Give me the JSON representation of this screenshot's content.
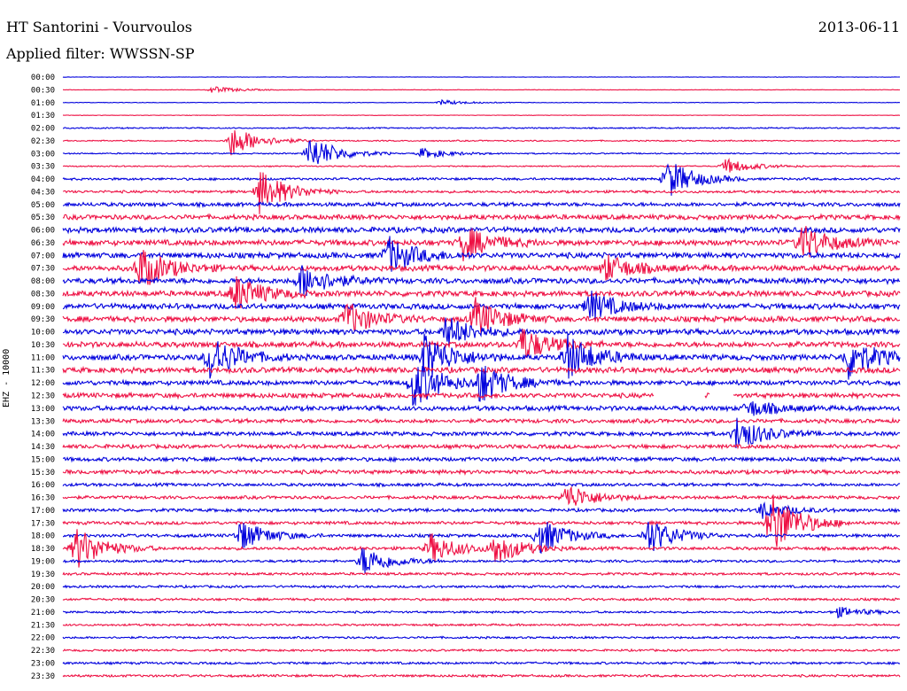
{
  "header": {
    "station": "HT Santorini - Vourvoulos",
    "date": "2013-06-11",
    "filter": "Applied filter: WWSSN-SP"
  },
  "colors": {
    "blue": "#0000dd",
    "red": "#ee1144",
    "background": "#ffffff"
  },
  "chart_data": {
    "type": "line",
    "ylabel": "EHZ - 10000",
    "rows": [
      "00:00",
      "00:30",
      "01:00",
      "01:30",
      "02:00",
      "02:30",
      "03:00",
      "03:30",
      "04:00",
      "04:30",
      "05:00",
      "05:30",
      "06:00",
      "06:30",
      "07:00",
      "07:30",
      "08:00",
      "08:30",
      "09:00",
      "09:30",
      "10:00",
      "10:30",
      "11:00",
      "11:30",
      "12:00",
      "12:30",
      "13:00",
      "13:30",
      "14:00",
      "14:30",
      "15:00",
      "15:30",
      "16:00",
      "16:30",
      "17:00",
      "17:30",
      "18:00",
      "18:30",
      "19:00",
      "19:30",
      "20:00",
      "20:30",
      "21:00",
      "21:30",
      "22:00",
      "22:30",
      "23:00",
      "23:30"
    ],
    "row_colors": [
      "blue",
      "red",
      "blue",
      "red",
      "blue",
      "red",
      "blue",
      "red",
      "blue",
      "red",
      "blue",
      "red",
      "blue",
      "red",
      "blue",
      "red",
      "blue",
      "red",
      "blue",
      "red",
      "blue",
      "red",
      "blue",
      "red",
      "blue",
      "red",
      "blue",
      "red",
      "blue",
      "red",
      "blue",
      "red",
      "blue",
      "red",
      "blue",
      "red",
      "blue",
      "red",
      "blue",
      "red",
      "blue",
      "red",
      "blue",
      "red",
      "blue",
      "red",
      "blue",
      "red"
    ],
    "x_unit": "minutes after row start",
    "xlim": [
      0,
      30
    ],
    "noise_level": [
      0.3,
      0.3,
      0.3,
      0.3,
      0.8,
      0.8,
      0.8,
      0.8,
      1.5,
      1.6,
      2.5,
      3,
      3.5,
      3.5,
      3.5,
      3.5,
      3.5,
      3.5,
      3.5,
      3.5,
      3.5,
      3.5,
      3.5,
      3.5,
      3,
      3,
      3,
      2.5,
      2.5,
      2.5,
      2.5,
      2.5,
      2,
      2,
      2,
      2,
      2,
      2,
      1.6,
      1.6,
      1.5,
      1.5,
      1.3,
      1.3,
      1.3,
      1.3,
      1.5,
      1.5
    ],
    "events": [
      {
        "row": "00:30",
        "minute": 5.3,
        "amp": 4
      },
      {
        "row": "01:00",
        "minute": 13.5,
        "amp": 3
      },
      {
        "row": "02:30",
        "minute": 6.0,
        "amp": 18
      },
      {
        "row": "03:00",
        "minute": 8.8,
        "amp": 22
      },
      {
        "row": "03:00",
        "minute": 12.8,
        "amp": 6
      },
      {
        "row": "03:30",
        "minute": 23.7,
        "amp": 9
      },
      {
        "row": "04:00",
        "minute": 21.6,
        "amp": 24
      },
      {
        "row": "04:30",
        "minute": 7.0,
        "amp": 26
      },
      {
        "row": "06:30",
        "minute": 14.3,
        "amp": 20
      },
      {
        "row": "06:30",
        "minute": 26.4,
        "amp": 22
      },
      {
        "row": "07:00",
        "minute": 11.6,
        "amp": 22
      },
      {
        "row": "07:30",
        "minute": 2.7,
        "amp": 26
      },
      {
        "row": "07:30",
        "minute": 19.4,
        "amp": 16
      },
      {
        "row": "08:00",
        "minute": 8.5,
        "amp": 20
      },
      {
        "row": "08:30",
        "minute": 6.1,
        "amp": 22
      },
      {
        "row": "09:00",
        "minute": 18.8,
        "amp": 18
      },
      {
        "row": "09:30",
        "minute": 10.1,
        "amp": 20
      },
      {
        "row": "09:30",
        "minute": 14.7,
        "amp": 24
      },
      {
        "row": "10:00",
        "minute": 13.7,
        "amp": 18
      },
      {
        "row": "10:30",
        "minute": 16.4,
        "amp": 20
      },
      {
        "row": "11:00",
        "minute": 5.2,
        "amp": 28
      },
      {
        "row": "11:00",
        "minute": 12.9,
        "amp": 30
      },
      {
        "row": "11:00",
        "minute": 18.0,
        "amp": 28
      },
      {
        "row": "11:00",
        "minute": 28.1,
        "amp": 26
      },
      {
        "row": "12:00",
        "minute": 12.5,
        "amp": 30
      },
      {
        "row": "12:00",
        "minute": 14.9,
        "amp": 24
      },
      {
        "row": "13:00",
        "minute": 24.5,
        "amp": 10
      },
      {
        "row": "14:00",
        "minute": 24.1,
        "amp": 20
      },
      {
        "row": "16:30",
        "minute": 18.0,
        "amp": 16
      },
      {
        "row": "17:00",
        "minute": 25.0,
        "amp": 10
      },
      {
        "row": "17:30",
        "minute": 25.3,
        "amp": 40
      },
      {
        "row": "18:00",
        "minute": 6.3,
        "amp": 18
      },
      {
        "row": "18:00",
        "minute": 17.0,
        "amp": 22
      },
      {
        "row": "18:00",
        "minute": 20.9,
        "amp": 22
      },
      {
        "row": "18:30",
        "minute": 0.4,
        "amp": 26
      },
      {
        "row": "18:30",
        "minute": 13.1,
        "amp": 18
      },
      {
        "row": "18:30",
        "minute": 15.4,
        "amp": 18
      },
      {
        "row": "19:00",
        "minute": 10.7,
        "amp": 18
      },
      {
        "row": "21:00",
        "minute": 27.7,
        "amp": 6
      }
    ],
    "gaps": [
      {
        "row": "12:30",
        "from": 21.2,
        "to": 23.0
      },
      {
        "row": "12:30",
        "from": 23.2,
        "to": 24.0
      }
    ]
  }
}
